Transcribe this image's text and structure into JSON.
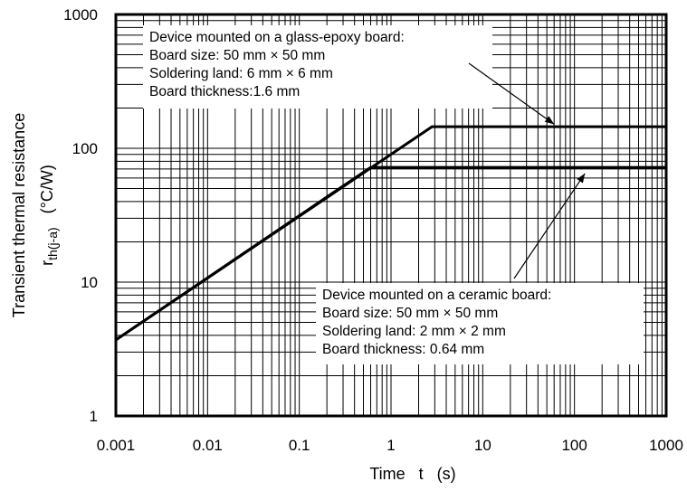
{
  "chart_data": {
    "type": "line",
    "x_scale": "log",
    "y_scale": "log",
    "xlim": [
      0.001,
      1000
    ],
    "ylim": [
      1,
      1000
    ],
    "grid": true,
    "xlabel": "Time   t   (s)",
    "ylabel_main": "Transient thermal resistance",
    "ylabel_symbol": "r",
    "ylabel_subscript": "th(j-a)",
    "ylabel_unit": "(°C/W)",
    "x_ticks": [
      "0.001",
      "0.01",
      "0.1",
      "1",
      "10",
      "100",
      "1000"
    ],
    "y_ticks": [
      "1",
      "10",
      "100",
      "1000"
    ],
    "series": [
      {
        "points": [
          [
            0.001,
            3.7
          ],
          [
            2.8,
            145
          ],
          [
            1000,
            145
          ]
        ]
      },
      {
        "points": [
          [
            0.001,
            3.7
          ],
          [
            0.6,
            72
          ],
          [
            1000,
            72
          ]
        ]
      }
    ],
    "annotations": [
      {
        "lines": [
          "Device mounted on a glass-epoxy board:",
          "Board size: 50 mm  ×  50 mm",
          "Soldering land: 6 mm × 6 mm",
          "Board thickness:1.6 mm"
        ],
        "arrow_to": [
          60,
          140
        ]
      },
      {
        "lines": [
          "Device mounted on a ceramic board:",
          "Board size: 50 mm  ×  50 mm",
          "Soldering land: 2 mm × 2 mm",
          "Board thickness: 0.64 mm"
        ],
        "arrow_to": [
          130,
          70
        ]
      }
    ]
  }
}
